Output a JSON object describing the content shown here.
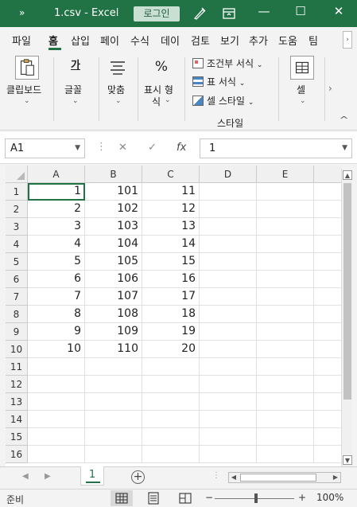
{
  "titlebar": {
    "quick_access": "»",
    "title": "1.csv  -  Excel",
    "login_button": "로그인",
    "minimize": "—",
    "restore": "☐",
    "close": "✕"
  },
  "tabs": [
    "파일",
    "홈",
    "삽입",
    "페이",
    "수식",
    "데이",
    "검토",
    "보기",
    "추가",
    "도움",
    "팀"
  ],
  "active_tab": "홈",
  "tabs_scroll": "›",
  "ribbon": {
    "clipboard": "클립보드",
    "font": "글꼴",
    "font_icon": "가",
    "alignment": "맞춤",
    "number_line1": "표시 형",
    "number_line2": "식",
    "number_icon": "%",
    "conditional_format": "조건부 서식",
    "format_as_table": "표 서식",
    "cell_styles": "셀 스타일",
    "styles_group": "스타일",
    "cells": "셀",
    "more": "›",
    "collapse": "^"
  },
  "formula_bar": {
    "name_box": "A1",
    "cancel": "✕",
    "enter": "✓",
    "fx": "fx",
    "value": "1"
  },
  "columns": [
    "A",
    "B",
    "C",
    "D",
    "E"
  ],
  "rows": [
    "1",
    "2",
    "3",
    "4",
    "5",
    "6",
    "7",
    "8",
    "9",
    "10",
    "11",
    "12",
    "13",
    "14",
    "15",
    "16"
  ],
  "cells": [
    [
      "1",
      "101",
      "11"
    ],
    [
      "2",
      "102",
      "12"
    ],
    [
      "3",
      "103",
      "13"
    ],
    [
      "4",
      "104",
      "14"
    ],
    [
      "5",
      "105",
      "15"
    ],
    [
      "6",
      "106",
      "16"
    ],
    [
      "7",
      "107",
      "17"
    ],
    [
      "8",
      "108",
      "18"
    ],
    [
      "9",
      "109",
      "19"
    ],
    [
      "10",
      "110",
      "20"
    ]
  ],
  "selected_cell": "A1",
  "sheet_tabs": [
    "1"
  ],
  "add_sheet": "+",
  "status": {
    "ready": "준비",
    "zoom_minus": "−",
    "zoom_plus": "+",
    "zoom_level": "100%"
  },
  "colors": {
    "accent": "#217346",
    "gridline": "#e1e1e1"
  }
}
